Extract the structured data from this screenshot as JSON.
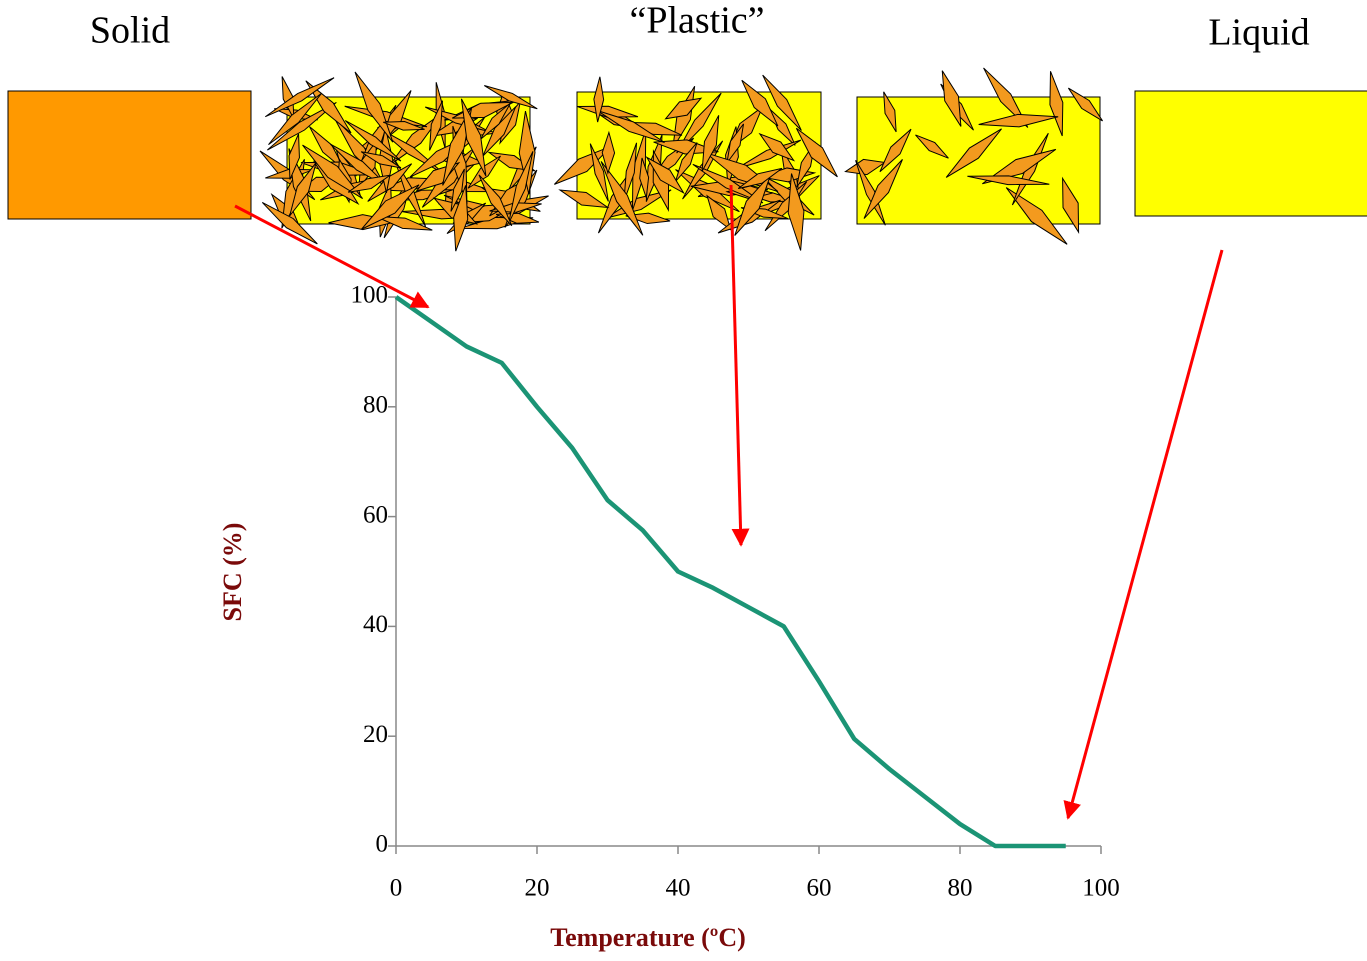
{
  "chart_data": {
    "type": "line",
    "phase_labels": [
      "Solid",
      "“Plastic”",
      "Liquid"
    ],
    "x_label": "Temperature (ºC)",
    "y_label": "SFC (%)",
    "x": [
      0,
      5,
      10,
      15,
      20,
      25,
      30,
      35,
      40,
      45,
      50,
      55,
      60,
      65,
      70,
      75,
      80,
      85,
      90,
      95
    ],
    "series": [
      {
        "color": "#1b9475",
        "values": [
          100,
          95.5,
          91,
          88,
          80,
          72.5,
          63,
          57.5,
          50,
          47,
          43.5,
          40,
          30,
          19.5,
          14,
          9,
          4,
          0,
          0,
          0
        ]
      }
    ],
    "xlim": [
      0,
      100
    ],
    "xticks": [
      0,
      20,
      40,
      60,
      80,
      100
    ],
    "ylim": [
      0,
      100
    ],
    "yticks": [
      0,
      20,
      40,
      60,
      80,
      100
    ]
  }
}
